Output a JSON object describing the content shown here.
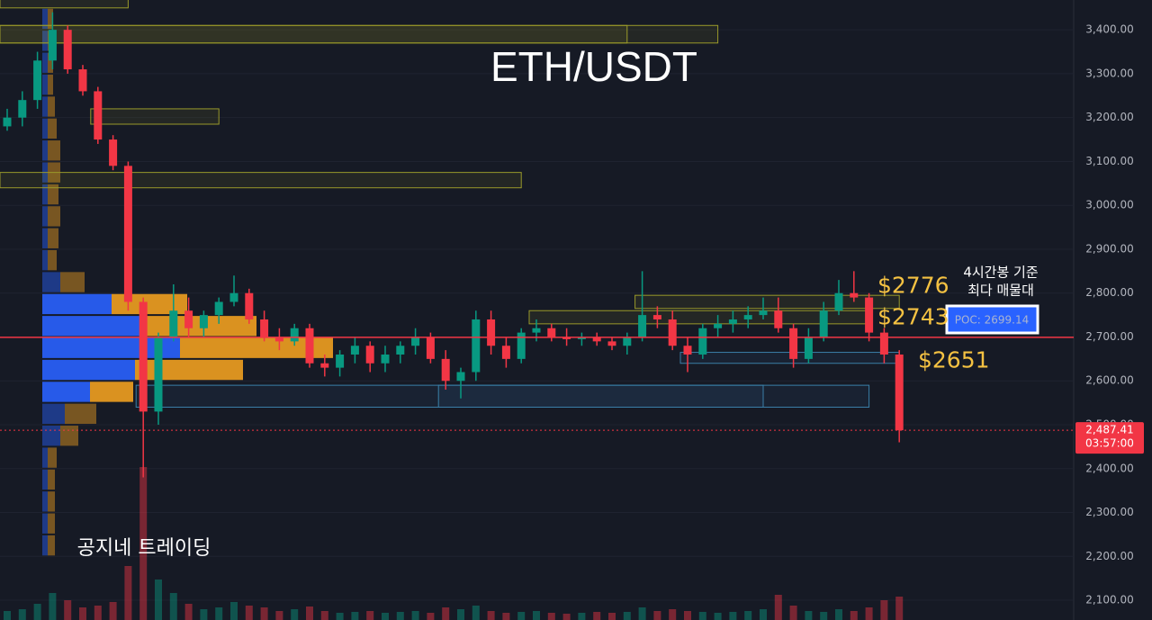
{
  "chart_data": {
    "type": "candlestick",
    "title": "ETH/USDT",
    "watermark": "공지네 트레이딩",
    "note": [
      "4시간봉 기준",
      "최다 매물대"
    ],
    "ylim": [
      2055,
      3468
    ],
    "yticks": [
      {
        "value": 2100,
        "label": "2,100.00"
      },
      {
        "value": 2200,
        "label": "2,200.00"
      },
      {
        "value": 2300,
        "label": "2,300.00"
      },
      {
        "value": 2400,
        "label": "2,400.00"
      },
      {
        "value": 2500,
        "label": "2,500.00"
      },
      {
        "value": 2600,
        "label": "2,600.00"
      },
      {
        "value": 2700,
        "label": "2,700.00"
      },
      {
        "value": 2800,
        "label": "2,800.00"
      },
      {
        "value": 2900,
        "label": "2,900.00"
      },
      {
        "value": 3000,
        "label": "3,000.00"
      },
      {
        "value": 3100,
        "label": "3,100.00"
      },
      {
        "value": 3200,
        "label": "3,200.00"
      },
      {
        "value": 3300,
        "label": "3,300.00"
      },
      {
        "value": 3400,
        "label": "3,400.00"
      }
    ],
    "grid": true,
    "up_color": "#089981",
    "down_color": "#f23645",
    "open": [
      3180,
      3200,
      3240,
      3330,
      3400,
      3310,
      3260,
      3150,
      3090,
      2780,
      2530,
      2700,
      2760,
      2720,
      2750,
      2780,
      2800,
      2740,
      2700,
      2690,
      2720,
      2640,
      2630,
      2660,
      2680,
      2640,
      2660,
      2680,
      2700,
      2650,
      2600,
      2620,
      2740,
      2680,
      2650,
      2710,
      2720,
      2700,
      2695,
      2700,
      2690,
      2680,
      2700,
      2750,
      2740,
      2680,
      2660,
      2720,
      2730,
      2740,
      2750,
      2760,
      2720,
      2650,
      2700,
      2760,
      2800,
      2790,
      2710,
      2660
    ],
    "high": [
      3220,
      3260,
      3350,
      3440,
      3410,
      3320,
      3270,
      3160,
      3100,
      2790,
      2710,
      2820,
      2790,
      2760,
      2790,
      2840,
      2810,
      2760,
      2720,
      2730,
      2730,
      2660,
      2670,
      2700,
      2690,
      2680,
      2690,
      2720,
      2710,
      2670,
      2630,
      2760,
      2760,
      2700,
      2720,
      2740,
      2730,
      2720,
      2710,
      2710,
      2700,
      2710,
      2850,
      2770,
      2760,
      2700,
      2730,
      2750,
      2760,
      2770,
      2790,
      2790,
      2730,
      2720,
      2780,
      2830,
      2850,
      2800,
      2720,
      2670
    ],
    "low": [
      3170,
      3180,
      3220,
      3310,
      3300,
      3250,
      3140,
      3080,
      2760,
      2380,
      2500,
      2690,
      2700,
      2700,
      2730,
      2770,
      2730,
      2690,
      2670,
      2680,
      2630,
      2610,
      2610,
      2640,
      2620,
      2620,
      2640,
      2660,
      2640,
      2580,
      2560,
      2600,
      2660,
      2630,
      2640,
      2690,
      2690,
      2680,
      2680,
      2680,
      2670,
      2660,
      2690,
      2720,
      2670,
      2620,
      2650,
      2700,
      2710,
      2720,
      2740,
      2710,
      2630,
      2640,
      2690,
      2750,
      2780,
      2690,
      2640,
      2460
    ],
    "close": [
      3200,
      3240,
      3330,
      3400,
      3310,
      3260,
      3150,
      3090,
      2780,
      2530,
      2700,
      2760,
      2720,
      2750,
      2780,
      2800,
      2740,
      2700,
      2690,
      2720,
      2640,
      2630,
      2660,
      2680,
      2640,
      2660,
      2680,
      2700,
      2650,
      2600,
      2620,
      2740,
      2680,
      2650,
      2710,
      2720,
      2700,
      2695,
      2700,
      2690,
      2680,
      2700,
      2750,
      2740,
      2680,
      2660,
      2720,
      2730,
      2740,
      2750,
      2760,
      2720,
      2650,
      2700,
      2760,
      2800,
      2790,
      2710,
      2660,
      2487.41
    ],
    "volumes": [
      10,
      12,
      18,
      30,
      22,
      14,
      16,
      20,
      60,
      170,
      45,
      30,
      18,
      12,
      14,
      20,
      16,
      14,
      10,
      12,
      15,
      10,
      8,
      9,
      10,
      8,
      9,
      10,
      8,
      14,
      12,
      16,
      10,
      8,
      9,
      10,
      8,
      7,
      8,
      9,
      8,
      9,
      14,
      10,
      12,
      10,
      9,
      8,
      9,
      10,
      12,
      28,
      16,
      10,
      9,
      12,
      10,
      14,
      22,
      26
    ],
    "volume_profile": {
      "levels": [
        2200,
        2250,
        2300,
        2350,
        2400,
        2450,
        2500,
        2550,
        2600,
        2650,
        2700,
        2750,
        2800,
        2850,
        2900,
        2950,
        3000,
        3050,
        3100,
        3150,
        3200,
        3250,
        3300,
        3350,
        3400
      ],
      "up": [
        6,
        6,
        6,
        6,
        6,
        20,
        25,
        53,
        103,
        153,
        116,
        77,
        20,
        6,
        6,
        6,
        6,
        6,
        6,
        6,
        6,
        6,
        6,
        6,
        6
      ],
      "down": [
        8,
        8,
        8,
        8,
        10,
        20,
        35,
        48,
        120,
        170,
        122,
        84,
        27,
        10,
        12,
        14,
        12,
        14,
        14,
        10,
        8,
        6,
        6,
        6,
        6
      ]
    },
    "zones": [
      {
        "from": 0,
        "to": 8,
        "low": 3450,
        "high": 3470,
        "color": "yellow"
      },
      {
        "from": 0,
        "to": 41,
        "low": 3370,
        "high": 3410,
        "color": "yellow"
      },
      {
        "from": 0,
        "to": 47,
        "low": 3370,
        "high": 3410,
        "color": "yellow"
      },
      {
        "from": 6,
        "to": 14,
        "low": 3185,
        "high": 3220,
        "color": "yellow"
      },
      {
        "from": 0,
        "to": 34,
        "low": 3040,
        "high": 3075,
        "color": "yellow"
      },
      {
        "from": 35,
        "to": 57,
        "low": 2730,
        "high": 2760,
        "color": "yellow"
      },
      {
        "from": 42,
        "to": 59,
        "low": 2765,
        "high": 2795,
        "color": "yellow"
      },
      {
        "from": 45,
        "to": 59,
        "low": 2640,
        "high": 2665,
        "color": "blue"
      },
      {
        "from": 9,
        "to": 57,
        "low": 2540,
        "high": 2590,
        "color": "blue"
      },
      {
        "from": 29,
        "to": 50,
        "low": 2540,
        "high": 2590,
        "color": "blue"
      }
    ],
    "levels": [
      {
        "value": 2776,
        "label": "$2776"
      },
      {
        "value": 2743,
        "label": "$2743"
      },
      {
        "value": 2651,
        "label": "$2651"
      }
    ],
    "poc": {
      "value": 2699.14,
      "label": "POC: 2699.14"
    },
    "last_price": {
      "value": 2487.41,
      "label": "2,487.41"
    },
    "countdown": "03:57:00"
  }
}
